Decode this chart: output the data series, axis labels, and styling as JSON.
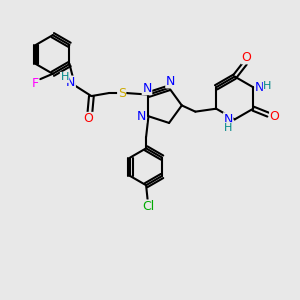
{
  "background_color": "#e8e8e8",
  "bond_color": "#000000",
  "atom_colors": {
    "N": "#0000ff",
    "O": "#ff0000",
    "S": "#ccaa00",
    "F": "#ff00ff",
    "Cl": "#00aa00",
    "H": "#008888",
    "C": "#000000"
  },
  "font_size": 9,
  "figsize": [
    3.0,
    3.0
  ],
  "dpi": 100
}
